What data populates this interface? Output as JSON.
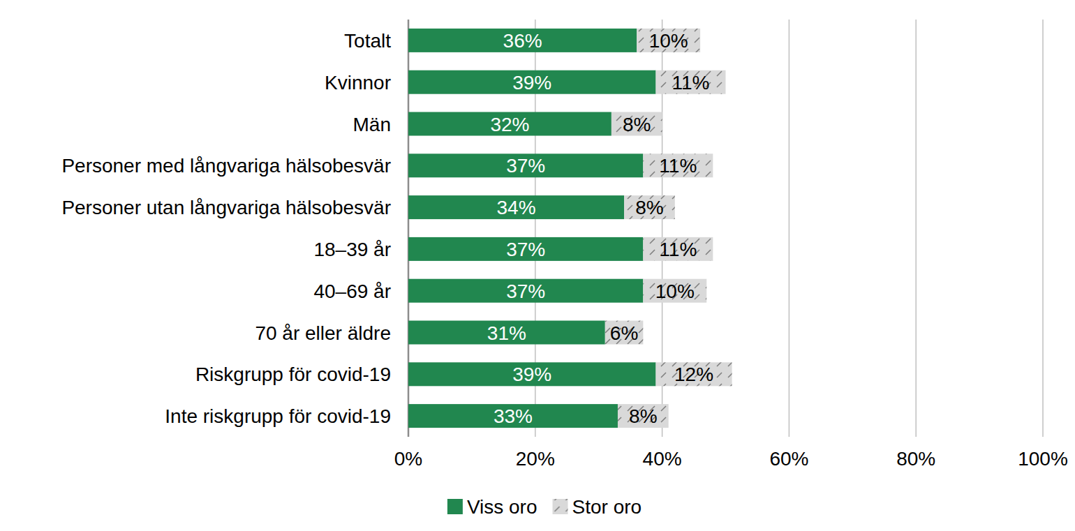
{
  "chart_data": {
    "type": "bar",
    "orientation": "horizontal",
    "stacked": true,
    "data_labels": true,
    "grid": true,
    "legend": "bottom",
    "categories": [
      "Totalt",
      "Kvinnor",
      "Män",
      "Personer med långvariga hälsobesvär",
      "Personer utan långvariga hälsobesvär",
      "18–39 år",
      "40–69 år",
      "70 år eller äldre",
      "Riskgrupp för covid-19",
      "Inte riskgrupp för covid-19"
    ],
    "xlim": [
      0,
      100
    ],
    "xticks": [
      {
        "value": 0,
        "label": "0%"
      },
      {
        "value": 20,
        "label": "20%"
      },
      {
        "value": 40,
        "label": "40%"
      },
      {
        "value": 60,
        "label": "60%"
      },
      {
        "value": 80,
        "label": "80%"
      },
      {
        "value": 100,
        "label": "100%"
      }
    ],
    "series": [
      {
        "name": "Viss oro",
        "color": "#21874f",
        "values": [
          36,
          39,
          32,
          37,
          34,
          37,
          37,
          31,
          39,
          33
        ],
        "value_labels": [
          "36%",
          "39%",
          "32%",
          "37%",
          "34%",
          "37%",
          "37%",
          "31%",
          "39%",
          "33%"
        ]
      },
      {
        "name": "Stor oro",
        "color": "#d9d9d9",
        "values": [
          10,
          11,
          8,
          11,
          8,
          11,
          10,
          6,
          12,
          8
        ],
        "value_labels": [
          "10%",
          "11%",
          "8%",
          "11%",
          "8%",
          "11%",
          "10%",
          "6%",
          "12%",
          "8%"
        ]
      }
    ]
  }
}
